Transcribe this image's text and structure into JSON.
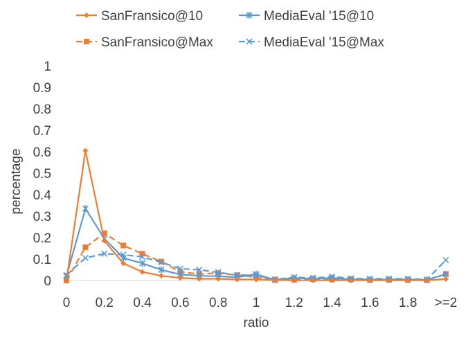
{
  "chart_data": {
    "type": "line",
    "title": "",
    "xlabel": "ratio",
    "ylabel": "percentage",
    "ylim": [
      0,
      1
    ],
    "y_ticks": [
      "0",
      "0.1",
      "0.2",
      "0.3",
      "0.4",
      "0.5",
      "0.6",
      "0.7",
      "0.8",
      "0.9",
      "1"
    ],
    "x_tick_labels": [
      "0",
      "0.2",
      "0.4",
      "0.6",
      "0.8",
      "1",
      "1.2",
      "1.4",
      "1.6",
      "1.8",
      ">=2"
    ],
    "categories": [
      "0",
      "0.1",
      "0.2",
      "0.3",
      "0.4",
      "0.5",
      "0.6",
      "0.7",
      "0.8",
      "0.9",
      "1",
      "1.1",
      "1.2",
      "1.3",
      "1.4",
      "1.5",
      "1.6",
      "1.7",
      "1.8",
      "1.9",
      ">=2"
    ],
    "grid": false,
    "legend_position": "top",
    "series": [
      {
        "name": "SanFransico@10",
        "color": "#ED7D31",
        "line_style": "solid",
        "marker": "diamond",
        "values": [
          0.0,
          0.605,
          0.185,
          0.08,
          0.04,
          0.022,
          0.012,
          0.008,
          0.008,
          0.005,
          0.005,
          0.002,
          0.001,
          0.001,
          0.001,
          0.001,
          0.001,
          0.001,
          0.001,
          0.001,
          0.007
        ]
      },
      {
        "name": "MediaEval '15@10",
        "color": "#5B9BD5",
        "line_style": "solid",
        "marker": "star",
        "values": [
          0.02,
          0.335,
          0.195,
          0.105,
          0.08,
          0.05,
          0.028,
          0.022,
          0.02,
          0.015,
          0.03,
          0.002,
          0.012,
          0.008,
          0.012,
          0.005,
          0.005,
          0.005,
          0.005,
          0.003,
          0.03
        ]
      },
      {
        "name": "SanFransico@Max",
        "color": "#ED7D31",
        "line_style": "dashed",
        "marker": "square",
        "values": [
          0.0,
          0.155,
          0.22,
          0.163,
          0.125,
          0.088,
          0.04,
          0.03,
          0.035,
          0.025,
          0.015,
          0.005,
          0.003,
          0.006,
          0.005,
          0.005,
          0.002,
          0.003,
          0.002,
          0.002,
          0.03
        ]
      },
      {
        "name": "MediaEval '15@Max",
        "color": "#5B9BD5",
        "line_style": "dashed",
        "marker": "x",
        "values": [
          0.025,
          0.105,
          0.125,
          0.12,
          0.11,
          0.085,
          0.055,
          0.05,
          0.038,
          0.025,
          0.025,
          0.005,
          0.015,
          0.012,
          0.018,
          0.01,
          0.008,
          0.008,
          0.008,
          0.005,
          0.095
        ]
      }
    ]
  }
}
